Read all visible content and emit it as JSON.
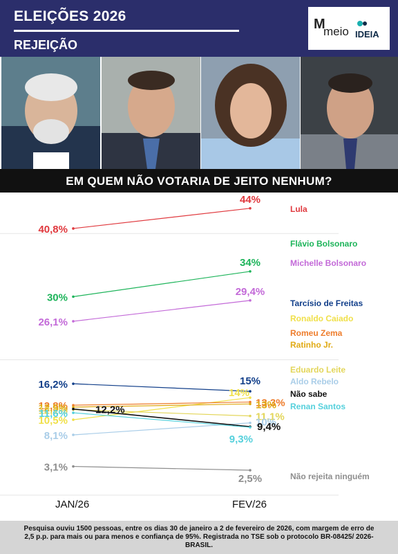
{
  "header": {
    "title": "ELEIÇÕES 2026",
    "subtitle": "REJEIÇÃO",
    "logo_meio": "meio",
    "logo_ideia": "IDEIA"
  },
  "photos": [
    {
      "name": "photo-lula"
    },
    {
      "name": "photo-flavio-bolsonaro"
    },
    {
      "name": "photo-michelle-bolsonaro"
    },
    {
      "name": "photo-tarcisio-de-freitas"
    }
  ],
  "question": "EM QUEM NÃO VOTARIA DE JEITO NENHUM?",
  "chart_data": {
    "type": "line",
    "x": [
      "JAN/26",
      "FEV/26"
    ],
    "series": [
      {
        "name": "Lula",
        "values": [
          40.8,
          44
        ],
        "labels": [
          "40,8%",
          "44%"
        ],
        "color": "#e0393e"
      },
      {
        "name": "Flávio Bolsonaro",
        "values": [
          30,
          34
        ],
        "labels": [
          "30%",
          "34%"
        ],
        "color": "#1db45a"
      },
      {
        "name": "Michelle Bolsonaro",
        "values": [
          26.1,
          29.4
        ],
        "labels": [
          "26,1%",
          "29,4%"
        ],
        "color": "#c36ad8"
      },
      {
        "name": "Tarcísio de Freitas",
        "values": [
          16.2,
          15
        ],
        "labels": [
          "16,2%",
          "15%"
        ],
        "color": "#123f8a"
      },
      {
        "name": "Ronaldo Caiado",
        "values": [
          10.5,
          14
        ],
        "labels": [
          "10,5%",
          "14%"
        ],
        "color": "#f0e04a"
      },
      {
        "name": "Romeu Zema",
        "values": [
          12.8,
          13.3
        ],
        "labels": [
          "12,8%",
          "13,3%"
        ],
        "color": "#ee7c2b"
      },
      {
        "name": "Ratinho Jr.",
        "values": [
          12.5,
          13
        ],
        "labels": [
          "12,5%",
          "13%"
        ],
        "color": "#e0aa14"
      },
      {
        "name": "Eduardo Leite",
        "values": [
          12.1,
          11.1
        ],
        "labels": [
          "12,1%",
          "11,1%"
        ],
        "color": "#e3d65a"
      },
      {
        "name": "Aldo Rebelo",
        "values": [
          8.1,
          10
        ],
        "labels": [
          "8,1%",
          "10%"
        ],
        "color": "#a9cde8"
      },
      {
        "name": "Não sabe",
        "values": [
          12.2,
          9.4
        ],
        "labels": [
          "12,2%",
          "9,4%"
        ],
        "color": "#111111"
      },
      {
        "name": "Renan Santos",
        "values": [
          11.6,
          9.3
        ],
        "labels": [
          "11,6%",
          "9,3%"
        ],
        "color": "#55d0dc"
      },
      {
        "name": "Não rejeita ninguém",
        "values": [
          3.1,
          2.5
        ],
        "labels": [
          "3,1%",
          "2,5%"
        ],
        "color": "#8e8e8e"
      }
    ],
    "grid": true,
    "legend": "right"
  },
  "footer": "Pesquisa ouviu 1500 pessoas, entre os dias 30 de janeiro a 2 de fevereiro de 2026, com margem de erro de 2,5 p.p. para mais ou para menos e confiança de 95%. Registrada no TSE sob o protocolo BR-08425/ 2026-BRASIL."
}
